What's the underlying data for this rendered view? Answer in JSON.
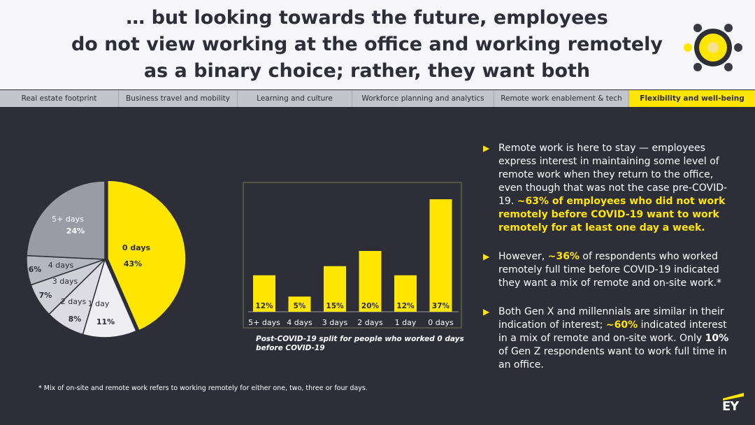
{
  "header": {
    "title_lines": [
      "… but looking towards the future, employees",
      "do not view working at the office and working remotely",
      "as a binary choice; rather, they want both"
    ]
  },
  "tabs": [
    {
      "label": "Real estate footprint",
      "active": false
    },
    {
      "label": "Business travel and mobility",
      "active": false
    },
    {
      "label": "Learning and culture",
      "active": false
    },
    {
      "label": "Workforce planning and analytics",
      "active": false
    },
    {
      "label": "Remote work enablement & tech",
      "active": false
    },
    {
      "label": "Flexibility and well-being",
      "active": true
    }
  ],
  "colors": {
    "accent": "#ffe600",
    "background": "#2e2e38",
    "pie_gray_dark": "#9b9ba6",
    "pie_gray_mid": "#b6b6c0",
    "pie_gray_light": "#cfcfd6",
    "pie_gray_lighter": "#dcdce2",
    "pie_white": "#ededf2"
  },
  "chart_data": [
    {
      "type": "pie",
      "title": "",
      "slices": [
        {
          "label": "0 days",
          "value": 43,
          "value_label": "43%"
        },
        {
          "label": "1 day",
          "value": 11,
          "value_label": "11%"
        },
        {
          "label": "2 days",
          "value": 8,
          "value_label": "8%"
        },
        {
          "label": "3 days",
          "value": 7,
          "value_label": "7%"
        },
        {
          "label": "4 days",
          "value": 6,
          "value_label": "6%"
        },
        {
          "label": "5+ days",
          "value": 24,
          "value_label": "24%"
        }
      ]
    },
    {
      "type": "bar",
      "title": "",
      "categories": [
        "5+ days",
        "4 days",
        "3 days",
        "2 days",
        "1 day",
        "0 days"
      ],
      "values": [
        12,
        5,
        15,
        20,
        12,
        37
      ],
      "value_labels": [
        "12%",
        "5%",
        "15%",
        "20%",
        "12%",
        "37%"
      ],
      "ylim": [
        0,
        40
      ],
      "caption": "Post-COVID-19 split for people who worked 0 days before COVID-19"
    }
  ],
  "bullets": [
    {
      "parts": [
        {
          "text": "Remote work is here to stay — employees express interest in maintaining some level of remote work when they return to the office, even though that was not the case pre-COVID-19. ",
          "style": ""
        },
        {
          "text": "~63% of employees who did not work remotely before COVID-19 want to work remotely for at least one day a week.",
          "style": "hl"
        }
      ]
    },
    {
      "parts": [
        {
          "text": "However, ",
          "style": ""
        },
        {
          "text": "~36%",
          "style": "hl"
        },
        {
          "text": " of respondents who worked remotely full time before COVID-19 indicated they want a mix of remote and on-site work.*",
          "style": ""
        }
      ]
    },
    {
      "parts": [
        {
          "text": "Both Gen X and millennials are similar in their indication of interest; ",
          "style": ""
        },
        {
          "text": "~60%",
          "style": "hl"
        },
        {
          "text": " indicated interest in a mix of remote and on-site work. Only ",
          "style": ""
        },
        {
          "text": "10%",
          "style": "b"
        },
        {
          "text": " of Gen Z respondents want to work full time in an office.",
          "style": ""
        }
      ]
    }
  ],
  "footnote": "* Mix of on-site and remote work refers to working remotely for either one, two, three or four days.",
  "brand": {
    "logo_text": "EY"
  }
}
